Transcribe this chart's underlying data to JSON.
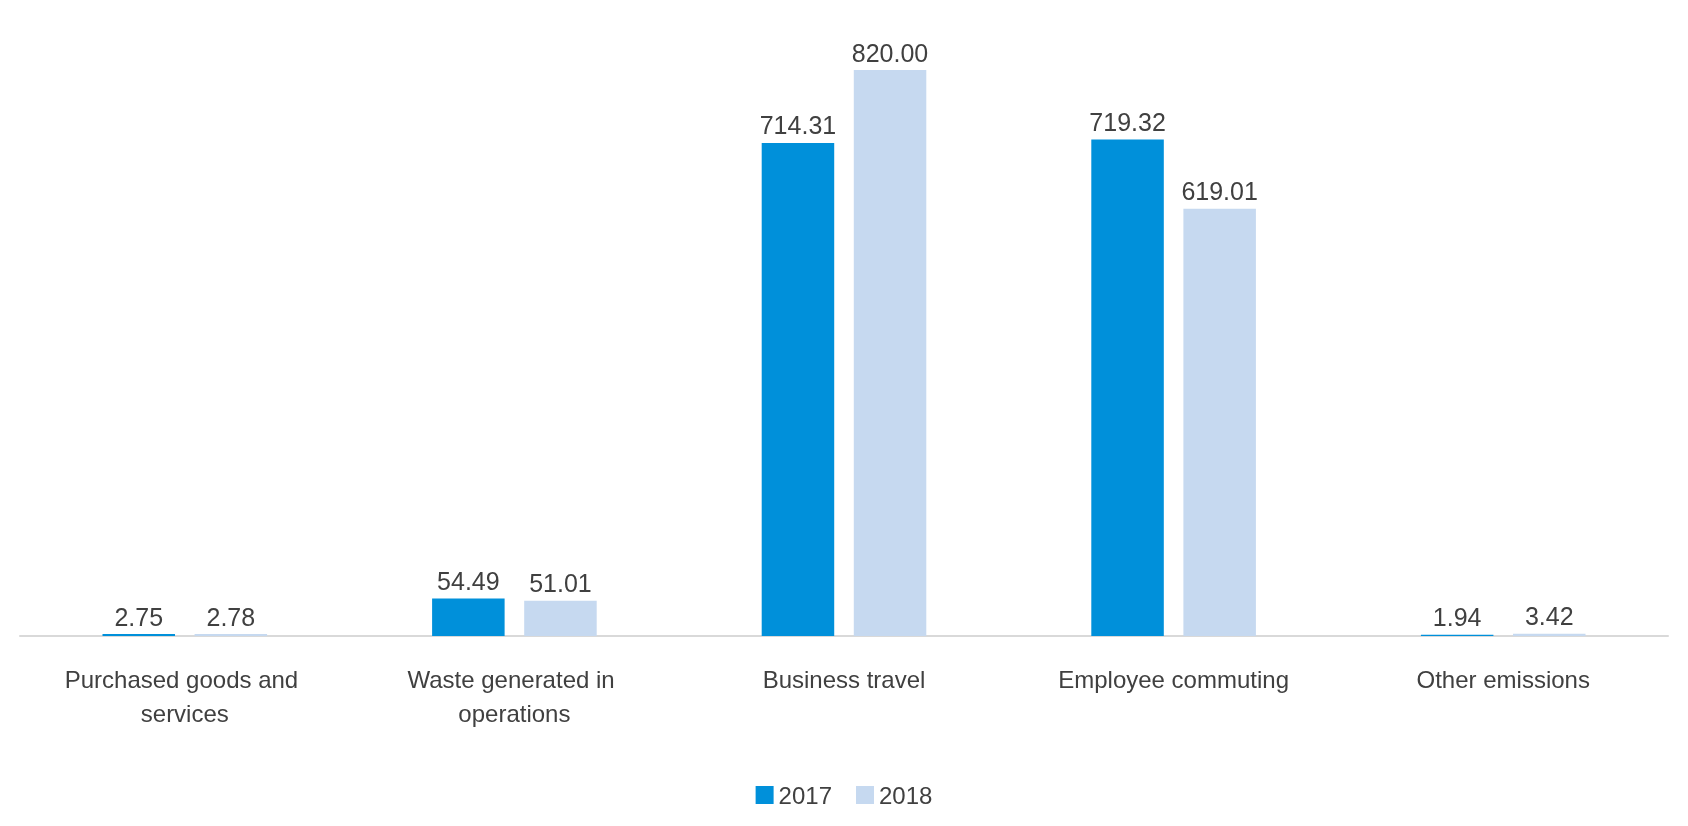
{
  "chart_data": {
    "type": "bar",
    "categories": [
      "Purchased goods and services",
      "Waste generated in operations",
      "Business travel",
      "Employee commuting",
      "Other emissions"
    ],
    "series": [
      {
        "name": "2017",
        "color": "#0090da",
        "values": [
          2.75,
          54.49,
          714.31,
          719.32,
          1.94
        ],
        "value_labels": [
          "2.75",
          "54.49",
          "714.31",
          "719.32",
          "1.94"
        ]
      },
      {
        "name": "2018",
        "color": "#c6d9f0",
        "values": [
          2.78,
          51.01,
          820.0,
          619.01,
          3.42
        ],
        "value_labels": [
          "2.78",
          "51.01",
          "820.00",
          "619.01",
          "3.42"
        ]
      }
    ],
    "legend": "bottom"
  }
}
